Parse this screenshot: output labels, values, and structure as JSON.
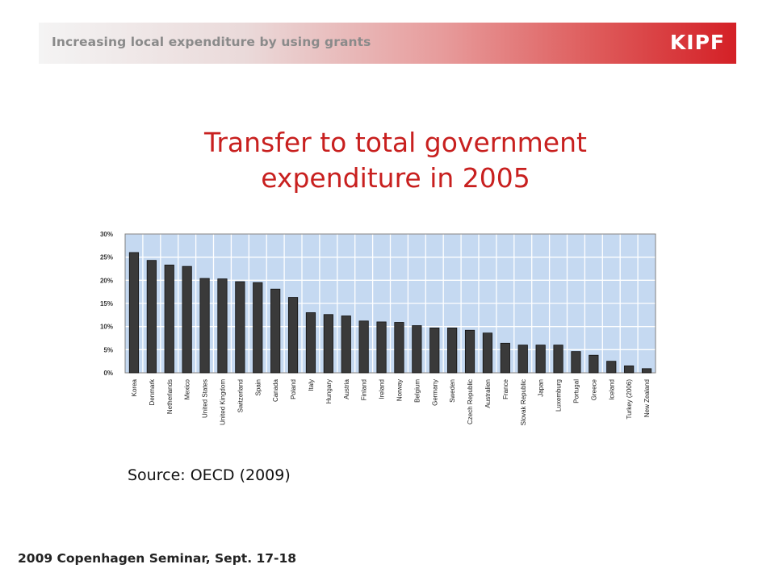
{
  "header": {
    "title": "Increasing local expenditure by using grants",
    "logo": "KIPF"
  },
  "slide": {
    "title_line1": "Transfer to total government",
    "title_line2": "expenditure in 2005",
    "source": "Source: OECD (2009)",
    "footer": "2009 Copenhagen Seminar, Sept. 17-18"
  },
  "colors": {
    "accent": "#c8201f",
    "plot_background": "#c5d9f1",
    "bar_fill": "#3a3a3a"
  },
  "chart_data": {
    "type": "bar",
    "title": "",
    "xlabel": "",
    "ylabel": "",
    "ylim": [
      0,
      30
    ],
    "y_ticks": [
      0,
      5,
      10,
      15,
      20,
      25,
      30
    ],
    "y_tick_labels": [
      "0%",
      "5%",
      "10%",
      "15%",
      "20%",
      "25%",
      "30%"
    ],
    "grid": true,
    "legend": "none",
    "categories": [
      "Korea",
      "Denmark",
      "Netherlands",
      "Mexico",
      "United States",
      "United Kingdom",
      "Switzerland",
      "Spain",
      "Canada",
      "Poland",
      "Italy",
      "Hungary",
      "Austria",
      "Finland",
      "Ireland",
      "Norway",
      "Belgium",
      "Germany",
      "Sweden",
      "Czech Republic",
      "Australien",
      "France",
      "Slovak Republic",
      "Japan",
      "Luxemburg",
      "Portugal",
      "Greece",
      "Iceland",
      "Turkey (2006)",
      "New Zealand"
    ],
    "values": [
      26.0,
      24.3,
      23.3,
      23.0,
      20.4,
      20.3,
      19.7,
      19.5,
      18.1,
      16.3,
      13.0,
      12.6,
      12.3,
      11.2,
      11.0,
      10.9,
      10.2,
      9.7,
      9.7,
      9.2,
      8.6,
      6.4,
      6.0,
      6.0,
      6.0,
      4.6,
      3.8,
      2.5,
      1.5,
      0.9
    ]
  }
}
